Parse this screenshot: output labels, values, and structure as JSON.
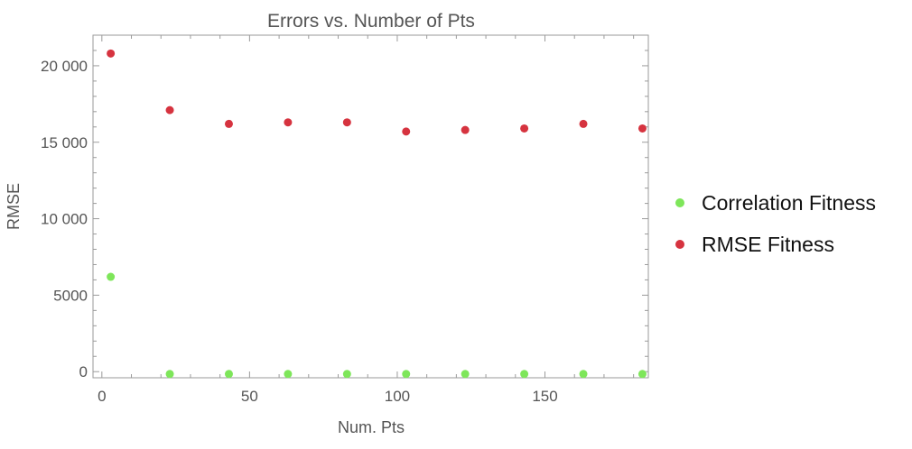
{
  "chart_data": {
    "type": "scatter",
    "title": "Errors vs. Number of Pts",
    "xlabel": "Num. Pts",
    "ylabel": "RMSE",
    "xlim": [
      -3,
      185
    ],
    "ylim": [
      -400,
      22000
    ],
    "x_ticks": [
      {
        "value": 0,
        "label": "0"
      },
      {
        "value": 50,
        "label": "50"
      },
      {
        "value": 100,
        "label": "100"
      },
      {
        "value": 150,
        "label": "150"
      }
    ],
    "y_ticks": [
      {
        "value": 0,
        "label": "0"
      },
      {
        "value": 5000,
        "label": "5000"
      },
      {
        "value": 10000,
        "label": "10 000"
      },
      {
        "value": 15000,
        "label": "15 000"
      },
      {
        "value": 20000,
        "label": "20 000"
      }
    ],
    "grid": false,
    "legend_position": "right",
    "series": [
      {
        "name": "Correlation Fitness",
        "color": "#7ee65a",
        "x": [
          3,
          23,
          43,
          63,
          83,
          103,
          123,
          143,
          163,
          183
        ],
        "y": [
          6200,
          -150,
          -150,
          -150,
          -150,
          -150,
          -150,
          -150,
          -150,
          -150
        ]
      },
      {
        "name": "RMSE Fitness",
        "color": "#d6333f",
        "x": [
          3,
          23,
          43,
          63,
          83,
          103,
          123,
          143,
          163,
          183
        ],
        "y": [
          20800,
          17100,
          16200,
          16300,
          16300,
          15700,
          15800,
          15900,
          16200,
          15900
        ]
      }
    ]
  }
}
